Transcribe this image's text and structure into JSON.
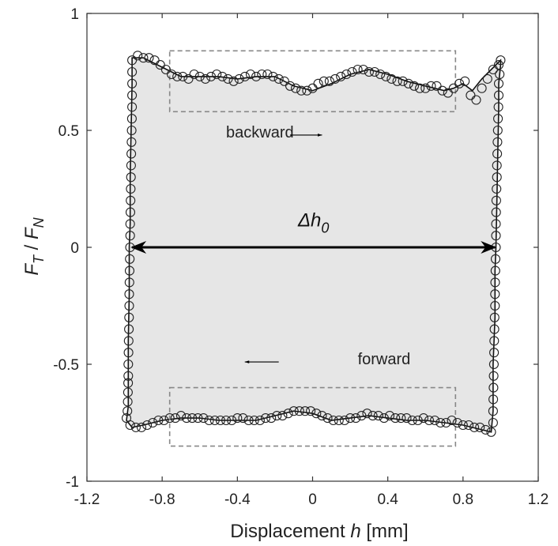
{
  "chart_data": {
    "type": "scatter",
    "xlabel": "Displacement h [mm]",
    "ylabel": "F_T / F_N",
    "xlim": [
      -1.2,
      1.2
    ],
    "ylim": [
      -1,
      1
    ],
    "xticks": [
      -1.2,
      -0.8,
      -0.4,
      0,
      0.4,
      0.8,
      1.2
    ],
    "xtick_labels": [
      "-1.2",
      "-0.8",
      "-0.4",
      "0",
      "0.4",
      "0.8",
      "1.2"
    ],
    "yticks": [
      -1,
      -0.5,
      0,
      0.5,
      1
    ],
    "ytick_labels": [
      "-1",
      "-0.5",
      "0",
      "0.5",
      "1"
    ],
    "grid": false,
    "fill_color": "#e6e6e6",
    "marker": "open-circle",
    "loop_outline": [
      [
        -0.98,
        -0.68
      ],
      [
        -0.99,
        -0.74
      ],
      [
        -0.96,
        -0.77
      ],
      [
        -0.9,
        -0.76
      ],
      [
        -0.8,
        -0.74
      ],
      [
        -0.7,
        -0.73
      ],
      [
        -0.6,
        -0.73
      ],
      [
        -0.5,
        -0.74
      ],
      [
        -0.4,
        -0.74
      ],
      [
        -0.3,
        -0.74
      ],
      [
        -0.2,
        -0.72
      ],
      [
        -0.1,
        -0.7
      ],
      [
        0.0,
        -0.71
      ],
      [
        0.1,
        -0.74
      ],
      [
        0.2,
        -0.73
      ],
      [
        0.3,
        -0.72
      ],
      [
        0.4,
        -0.73
      ],
      [
        0.5,
        -0.74
      ],
      [
        0.6,
        -0.74
      ],
      [
        0.7,
        -0.75
      ],
      [
        0.8,
        -0.76
      ],
      [
        0.9,
        -0.78
      ],
      [
        0.95,
        -0.79
      ],
      [
        0.96,
        -0.7
      ],
      [
        0.96,
        -0.5
      ],
      [
        0.97,
        -0.3
      ],
      [
        0.97,
        -0.1
      ],
      [
        0.975,
        0.0
      ],
      [
        0.98,
        0.2
      ],
      [
        0.985,
        0.4
      ],
      [
        0.99,
        0.6
      ],
      [
        0.99,
        0.7
      ],
      [
        1.0,
        0.78
      ],
      [
        1.0,
        0.8
      ],
      [
        0.95,
        0.76
      ],
      [
        0.9,
        0.72
      ],
      [
        0.85,
        0.67
      ],
      [
        0.8,
        0.7
      ],
      [
        0.75,
        0.68
      ],
      [
        0.7,
        0.67
      ],
      [
        0.6,
        0.69
      ],
      [
        0.5,
        0.71
      ],
      [
        0.4,
        0.74
      ],
      [
        0.3,
        0.76
      ],
      [
        0.2,
        0.74
      ],
      [
        0.1,
        0.7
      ],
      [
        0.0,
        0.67
      ],
      [
        -0.1,
        0.69
      ],
      [
        -0.2,
        0.73
      ],
      [
        -0.3,
        0.73
      ],
      [
        -0.4,
        0.72
      ],
      [
        -0.5,
        0.73
      ],
      [
        -0.6,
        0.73
      ],
      [
        -0.7,
        0.73
      ],
      [
        -0.8,
        0.77
      ],
      [
        -0.9,
        0.81
      ],
      [
        -0.96,
        0.81
      ],
      [
        -0.96,
        0.7
      ],
      [
        -0.965,
        0.5
      ],
      [
        -0.97,
        0.3
      ],
      [
        -0.97,
        0.1
      ],
      [
        -0.975,
        0.0
      ],
      [
        -0.975,
        -0.2
      ],
      [
        -0.98,
        -0.4
      ],
      [
        -0.98,
        -0.55
      ],
      [
        -0.98,
        -0.68
      ]
    ],
    "markers": {
      "backward": [
        [
          -0.96,
          0.8
        ],
        [
          -0.93,
          0.82
        ],
        [
          -0.9,
          0.81
        ],
        [
          -0.87,
          0.81
        ],
        [
          -0.84,
          0.8
        ],
        [
          -0.81,
          0.78
        ],
        [
          -0.78,
          0.76
        ],
        [
          -0.75,
          0.74
        ],
        [
          -0.72,
          0.73
        ],
        [
          -0.69,
          0.73
        ],
        [
          -0.66,
          0.72
        ],
        [
          -0.63,
          0.74
        ],
        [
          -0.6,
          0.73
        ],
        [
          -0.57,
          0.72
        ],
        [
          -0.54,
          0.73
        ],
        [
          -0.51,
          0.74
        ],
        [
          -0.48,
          0.73
        ],
        [
          -0.45,
          0.72
        ],
        [
          -0.42,
          0.71
        ],
        [
          -0.39,
          0.72
        ],
        [
          -0.36,
          0.73
        ],
        [
          -0.33,
          0.74
        ],
        [
          -0.3,
          0.73
        ],
        [
          -0.27,
          0.74
        ],
        [
          -0.24,
          0.74
        ],
        [
          -0.21,
          0.73
        ],
        [
          -0.18,
          0.72
        ],
        [
          -0.15,
          0.71
        ],
        [
          -0.12,
          0.69
        ],
        [
          -0.09,
          0.68
        ],
        [
          -0.06,
          0.67
        ],
        [
          -0.03,
          0.67
        ],
        [
          0.0,
          0.68
        ],
        [
          0.03,
          0.7
        ],
        [
          0.06,
          0.71
        ],
        [
          0.09,
          0.71
        ],
        [
          0.12,
          0.72
        ],
        [
          0.15,
          0.73
        ],
        [
          0.18,
          0.74
        ],
        [
          0.21,
          0.75
        ],
        [
          0.24,
          0.76
        ],
        [
          0.27,
          0.76
        ],
        [
          0.3,
          0.75
        ],
        [
          0.33,
          0.75
        ],
        [
          0.36,
          0.74
        ],
        [
          0.39,
          0.73
        ],
        [
          0.42,
          0.72
        ],
        [
          0.45,
          0.71
        ],
        [
          0.48,
          0.71
        ],
        [
          0.51,
          0.7
        ],
        [
          0.54,
          0.69
        ],
        [
          0.57,
          0.68
        ],
        [
          0.6,
          0.68
        ],
        [
          0.63,
          0.69
        ],
        [
          0.66,
          0.69
        ],
        [
          0.69,
          0.67
        ],
        [
          0.72,
          0.66
        ],
        [
          0.75,
          0.68
        ],
        [
          0.78,
          0.7
        ],
        [
          0.81,
          0.71
        ],
        [
          0.84,
          0.65
        ],
        [
          0.87,
          0.63
        ],
        [
          0.9,
          0.68
        ],
        [
          0.93,
          0.72
        ],
        [
          0.96,
          0.76
        ],
        [
          0.99,
          0.78
        ]
      ],
      "right_edge": [
        [
          1.0,
          0.8
        ],
        [
          0.995,
          0.74
        ],
        [
          0.99,
          0.7
        ],
        [
          0.99,
          0.65
        ],
        [
          0.988,
          0.6
        ],
        [
          0.986,
          0.55
        ],
        [
          0.985,
          0.5
        ],
        [
          0.983,
          0.45
        ],
        [
          0.982,
          0.4
        ],
        [
          0.98,
          0.35
        ],
        [
          0.98,
          0.3
        ],
        [
          0.978,
          0.25
        ],
        [
          0.977,
          0.2
        ],
        [
          0.976,
          0.15
        ],
        [
          0.975,
          0.1
        ],
        [
          0.975,
          0.05
        ],
        [
          0.975,
          0.0
        ],
        [
          0.973,
          -0.05
        ],
        [
          0.972,
          -0.1
        ],
        [
          0.971,
          -0.15
        ],
        [
          0.97,
          -0.2
        ],
        [
          0.97,
          -0.25
        ],
        [
          0.968,
          -0.3
        ],
        [
          0.967,
          -0.35
        ],
        [
          0.966,
          -0.4
        ],
        [
          0.965,
          -0.45
        ],
        [
          0.964,
          -0.5
        ],
        [
          0.963,
          -0.55
        ],
        [
          0.962,
          -0.6
        ],
        [
          0.961,
          -0.65
        ],
        [
          0.96,
          -0.7
        ],
        [
          0.96,
          -0.75
        ]
      ],
      "forward": [
        [
          0.95,
          -0.79
        ],
        [
          0.92,
          -0.78
        ],
        [
          0.89,
          -0.77
        ],
        [
          0.86,
          -0.77
        ],
        [
          0.83,
          -0.76
        ],
        [
          0.8,
          -0.76
        ],
        [
          0.77,
          -0.75
        ],
        [
          0.74,
          -0.74
        ],
        [
          0.71,
          -0.75
        ],
        [
          0.68,
          -0.75
        ],
        [
          0.65,
          -0.74
        ],
        [
          0.62,
          -0.74
        ],
        [
          0.59,
          -0.73
        ],
        [
          0.56,
          -0.74
        ],
        [
          0.53,
          -0.74
        ],
        [
          0.5,
          -0.73
        ],
        [
          0.47,
          -0.73
        ],
        [
          0.44,
          -0.73
        ],
        [
          0.41,
          -0.72
        ],
        [
          0.38,
          -0.73
        ],
        [
          0.35,
          -0.72
        ],
        [
          0.32,
          -0.72
        ],
        [
          0.29,
          -0.71
        ],
        [
          0.26,
          -0.72
        ],
        [
          0.23,
          -0.73
        ],
        [
          0.2,
          -0.73
        ],
        [
          0.17,
          -0.74
        ],
        [
          0.14,
          -0.74
        ],
        [
          0.11,
          -0.74
        ],
        [
          0.08,
          -0.73
        ],
        [
          0.05,
          -0.72
        ],
        [
          0.02,
          -0.71
        ],
        [
          -0.01,
          -0.7
        ],
        [
          -0.04,
          -0.7
        ],
        [
          -0.07,
          -0.7
        ],
        [
          -0.1,
          -0.7
        ],
        [
          -0.13,
          -0.71
        ],
        [
          -0.16,
          -0.72
        ],
        [
          -0.19,
          -0.72
        ],
        [
          -0.22,
          -0.73
        ],
        [
          -0.25,
          -0.73
        ],
        [
          -0.28,
          -0.74
        ],
        [
          -0.31,
          -0.74
        ],
        [
          -0.34,
          -0.74
        ],
        [
          -0.37,
          -0.73
        ],
        [
          -0.4,
          -0.73
        ],
        [
          -0.43,
          -0.74
        ],
        [
          -0.46,
          -0.74
        ],
        [
          -0.49,
          -0.74
        ],
        [
          -0.52,
          -0.74
        ],
        [
          -0.55,
          -0.74
        ],
        [
          -0.58,
          -0.73
        ],
        [
          -0.61,
          -0.73
        ],
        [
          -0.64,
          -0.73
        ],
        [
          -0.67,
          -0.73
        ],
        [
          -0.7,
          -0.72
        ],
        [
          -0.73,
          -0.73
        ],
        [
          -0.76,
          -0.73
        ],
        [
          -0.79,
          -0.74
        ],
        [
          -0.82,
          -0.74
        ],
        [
          -0.85,
          -0.75
        ],
        [
          -0.88,
          -0.76
        ],
        [
          -0.91,
          -0.77
        ],
        [
          -0.94,
          -0.77
        ],
        [
          -0.97,
          -0.76
        ],
        [
          -0.99,
          -0.73
        ]
      ],
      "left_edge": [
        [
          -0.985,
          -0.7
        ],
        [
          -0.983,
          -0.66
        ],
        [
          -0.982,
          -0.62
        ],
        [
          -0.981,
          -0.58
        ],
        [
          -0.98,
          -0.55
        ],
        [
          -0.98,
          -0.5
        ],
        [
          -0.979,
          -0.45
        ],
        [
          -0.978,
          -0.4
        ],
        [
          -0.977,
          -0.35
        ],
        [
          -0.976,
          -0.3
        ],
        [
          -0.975,
          -0.25
        ],
        [
          -0.975,
          -0.2
        ],
        [
          -0.974,
          -0.15
        ],
        [
          -0.973,
          -0.1
        ],
        [
          -0.972,
          -0.05
        ],
        [
          -0.971,
          0.0
        ],
        [
          -0.97,
          0.05
        ],
        [
          -0.97,
          0.1
        ],
        [
          -0.969,
          0.15
        ],
        [
          -0.968,
          0.2
        ],
        [
          -0.967,
          0.25
        ],
        [
          -0.966,
          0.3
        ],
        [
          -0.965,
          0.35
        ],
        [
          -0.964,
          0.4
        ],
        [
          -0.963,
          0.45
        ],
        [
          -0.962,
          0.5
        ],
        [
          -0.961,
          0.55
        ],
        [
          -0.96,
          0.6
        ],
        [
          -0.96,
          0.65
        ],
        [
          -0.96,
          0.7
        ],
        [
          -0.96,
          0.75
        ]
      ]
    },
    "regions": [
      {
        "x": [
          -0.76,
          0.76
        ],
        "y": [
          0.58,
          0.84
        ],
        "style": "dashed"
      },
      {
        "x": [
          -0.76,
          0.76
        ],
        "y": [
          -0.85,
          -0.6
        ],
        "style": "dashed"
      }
    ],
    "annotations": [
      {
        "text": "backward",
        "x": -0.46,
        "y": 0.47,
        "arrow_from": [
          -0.12,
          0.48
        ],
        "arrow_to": [
          0.05,
          0.48
        ]
      },
      {
        "text": "forward",
        "x": 0.24,
        "y": -0.5,
        "arrow_from": [
          -0.18,
          -0.49
        ],
        "arrow_to": [
          -0.36,
          -0.49
        ]
      }
    ],
    "dimension": {
      "text": "Δh",
      "subscript": "0",
      "from": [
        -0.96,
        0
      ],
      "to": [
        0.97,
        0
      ],
      "label_y": 0.09
    }
  }
}
